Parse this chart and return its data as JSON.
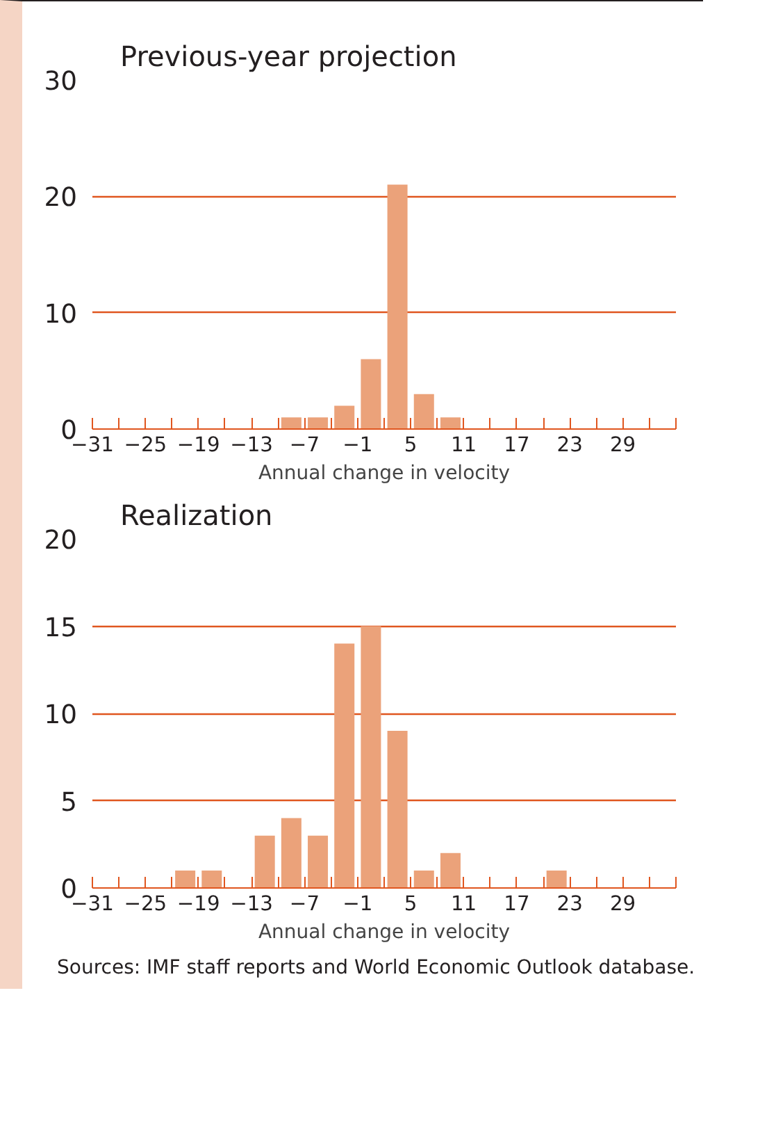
{
  "chart_data": [
    {
      "type": "histogram",
      "title": "Previous-year projection",
      "xlabel": "Annual change in velocity",
      "bins": [
        -31,
        -28,
        -25,
        -22,
        -19,
        -16,
        -13,
        -10,
        -7,
        -4,
        -1,
        2,
        5,
        8,
        11,
        14,
        17,
        20,
        23,
        26,
        29,
        32,
        35
      ],
      "values": [
        0,
        0,
        0,
        0,
        0,
        0,
        0,
        1,
        1,
        2,
        6,
        21,
        3,
        1,
        0,
        0,
        0,
        0,
        0,
        0,
        0,
        0
      ],
      "color": "#eba27a",
      "ylim": [
        0,
        30
      ],
      "yticks": [
        0,
        10,
        20,
        30
      ],
      "grid": "y",
      "xlim": [
        -31,
        35
      ],
      "xticks": [
        -31,
        {
          "value": -28,
          "label": null
        },
        -25,
        {
          "value": -22,
          "label": null
        },
        -19,
        {
          "value": -16,
          "label": null
        },
        -13,
        {
          "value": -10,
          "label": null
        },
        -7,
        {
          "value": -4,
          "label": null
        },
        -1,
        {
          "value": 2,
          "label": null
        },
        5,
        {
          "value": 8,
          "label": null
        },
        11,
        {
          "value": 14,
          "label": null
        },
        17,
        {
          "value": 20,
          "label": null
        },
        23,
        {
          "value": 26,
          "label": null
        },
        29,
        {
          "value": 32,
          "label": null
        },
        {
          "value": 35,
          "label": null
        }
      ]
    },
    {
      "type": "histogram",
      "title": "Realization",
      "xlabel": "Annual change in velocity",
      "bins": [
        -31,
        -28,
        -25,
        -22,
        -19,
        -16,
        -13,
        -10,
        -7,
        -4,
        -1,
        2,
        5,
        8,
        11,
        14,
        17,
        20,
        23,
        26,
        29,
        32,
        35
      ],
      "values": [
        0,
        0,
        0,
        1,
        1,
        0,
        3,
        4,
        3,
        14,
        15,
        9,
        1,
        2,
        0,
        0,
        0,
        1,
        0,
        0,
        0,
        0
      ],
      "color": "#eba27a",
      "ylim": [
        0,
        20
      ],
      "yticks": [
        0,
        5,
        10,
        15,
        20
      ],
      "grid": "y",
      "xlim": [
        -31,
        35
      ],
      "xticks": [
        -31,
        {
          "value": -28,
          "label": null
        },
        -25,
        {
          "value": -22,
          "label": null
        },
        -19,
        {
          "value": -16,
          "label": null
        },
        -13,
        {
          "value": -10,
          "label": null
        },
        -7,
        {
          "value": -4,
          "label": null
        },
        -1,
        {
          "value": 2,
          "label": null
        },
        5,
        {
          "value": 8,
          "label": null
        },
        11,
        {
          "value": 14,
          "label": null
        },
        17,
        {
          "value": 20,
          "label": null
        },
        23,
        {
          "value": 26,
          "label": null
        },
        29,
        {
          "value": 32,
          "label": null
        },
        {
          "value": 35,
          "label": null
        }
      ],
      "annotations": [
        "Sources: IMF staff reports and World Economic Outlook database."
      ]
    }
  ]
}
